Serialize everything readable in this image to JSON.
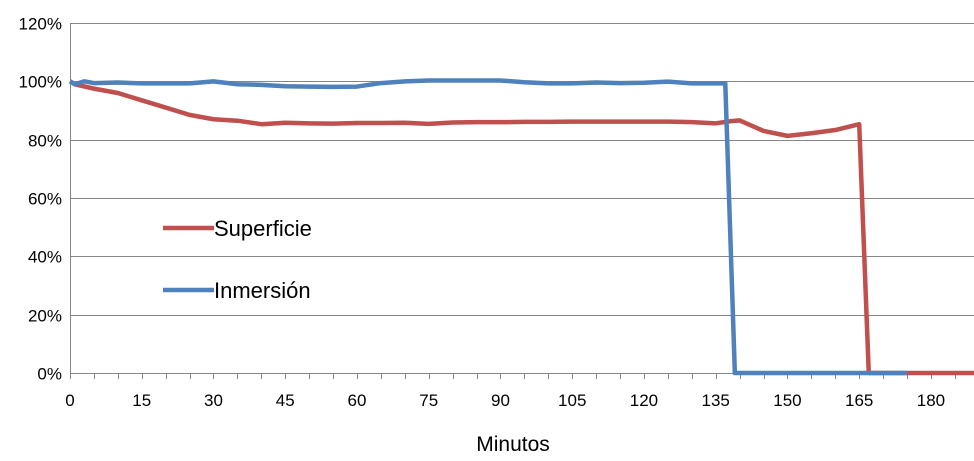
{
  "chart_data": {
    "type": "line",
    "title": "",
    "xlabel": "Minutos",
    "ylabel": "",
    "xlim": [
      0,
      189
    ],
    "ylim": [
      0,
      120
    ],
    "xticks": [
      0,
      15,
      30,
      45,
      60,
      75,
      90,
      105,
      120,
      135,
      150,
      165,
      180
    ],
    "xtick_labels": [
      "0",
      "15",
      "30",
      "45",
      "60",
      "75",
      "90",
      "105",
      "120",
      "135",
      "150",
      "165",
      "180"
    ],
    "minor_xtick_step": 5,
    "yticks": [
      0,
      20,
      40,
      60,
      80,
      100,
      120
    ],
    "ytick_labels": [
      "0%",
      "20%",
      "40%",
      "60%",
      "80%",
      "100%",
      "120%"
    ],
    "grid": "horizontal",
    "legend": "left-center",
    "series": [
      {
        "name": "Superficie",
        "color": "#C0504D",
        "points": [
          [
            0,
            100
          ],
          [
            1,
            99
          ],
          [
            5,
            97.5
          ],
          [
            10,
            96
          ],
          [
            15,
            93.5
          ],
          [
            20,
            91
          ],
          [
            25,
            88.5
          ],
          [
            30,
            87
          ],
          [
            35,
            86.5
          ],
          [
            40,
            85.3
          ],
          [
            45,
            85.8
          ],
          [
            50,
            85.6
          ],
          [
            55,
            85.5
          ],
          [
            60,
            85.7
          ],
          [
            65,
            85.7
          ],
          [
            70,
            85.8
          ],
          [
            75,
            85.4
          ],
          [
            80,
            85.9
          ],
          [
            85,
            86
          ],
          [
            90,
            86
          ],
          [
            95,
            86.1
          ],
          [
            100,
            86.1
          ],
          [
            105,
            86.2
          ],
          [
            110,
            86.2
          ],
          [
            115,
            86.2
          ],
          [
            120,
            86.2
          ],
          [
            125,
            86.2
          ],
          [
            130,
            86
          ],
          [
            135,
            85.6
          ],
          [
            138,
            86.3
          ],
          [
            140,
            86.6
          ],
          [
            145,
            83
          ],
          [
            150,
            81.3
          ],
          [
            155,
            82.2
          ],
          [
            160,
            83.3
          ],
          [
            165,
            85.3
          ],
          [
            167,
            0
          ],
          [
            175,
            0
          ],
          [
            189,
            0
          ]
        ]
      },
      {
        "name": "Inmersión",
        "color": "#4F81BD",
        "points": [
          [
            0,
            100
          ],
          [
            1,
            99
          ],
          [
            3,
            100
          ],
          [
            5,
            99.4
          ],
          [
            10,
            99.6
          ],
          [
            15,
            99.3
          ],
          [
            20,
            99.3
          ],
          [
            25,
            99.3
          ],
          [
            30,
            100
          ],
          [
            35,
            99
          ],
          [
            40,
            98.8
          ],
          [
            45,
            98.3
          ],
          [
            50,
            98.2
          ],
          [
            55,
            98.1
          ],
          [
            60,
            98.2
          ],
          [
            65,
            99.4
          ],
          [
            70,
            100
          ],
          [
            75,
            100.3
          ],
          [
            80,
            100.3
          ],
          [
            85,
            100.3
          ],
          [
            90,
            100.3
          ],
          [
            95,
            99.7
          ],
          [
            100,
            99.3
          ],
          [
            105,
            99.3
          ],
          [
            110,
            99.6
          ],
          [
            115,
            99.4
          ],
          [
            120,
            99.5
          ],
          [
            125,
            99.9
          ],
          [
            130,
            99.3
          ],
          [
            135,
            99.3
          ],
          [
            137,
            99.3
          ],
          [
            139,
            0
          ],
          [
            175,
            0
          ]
        ]
      }
    ]
  }
}
